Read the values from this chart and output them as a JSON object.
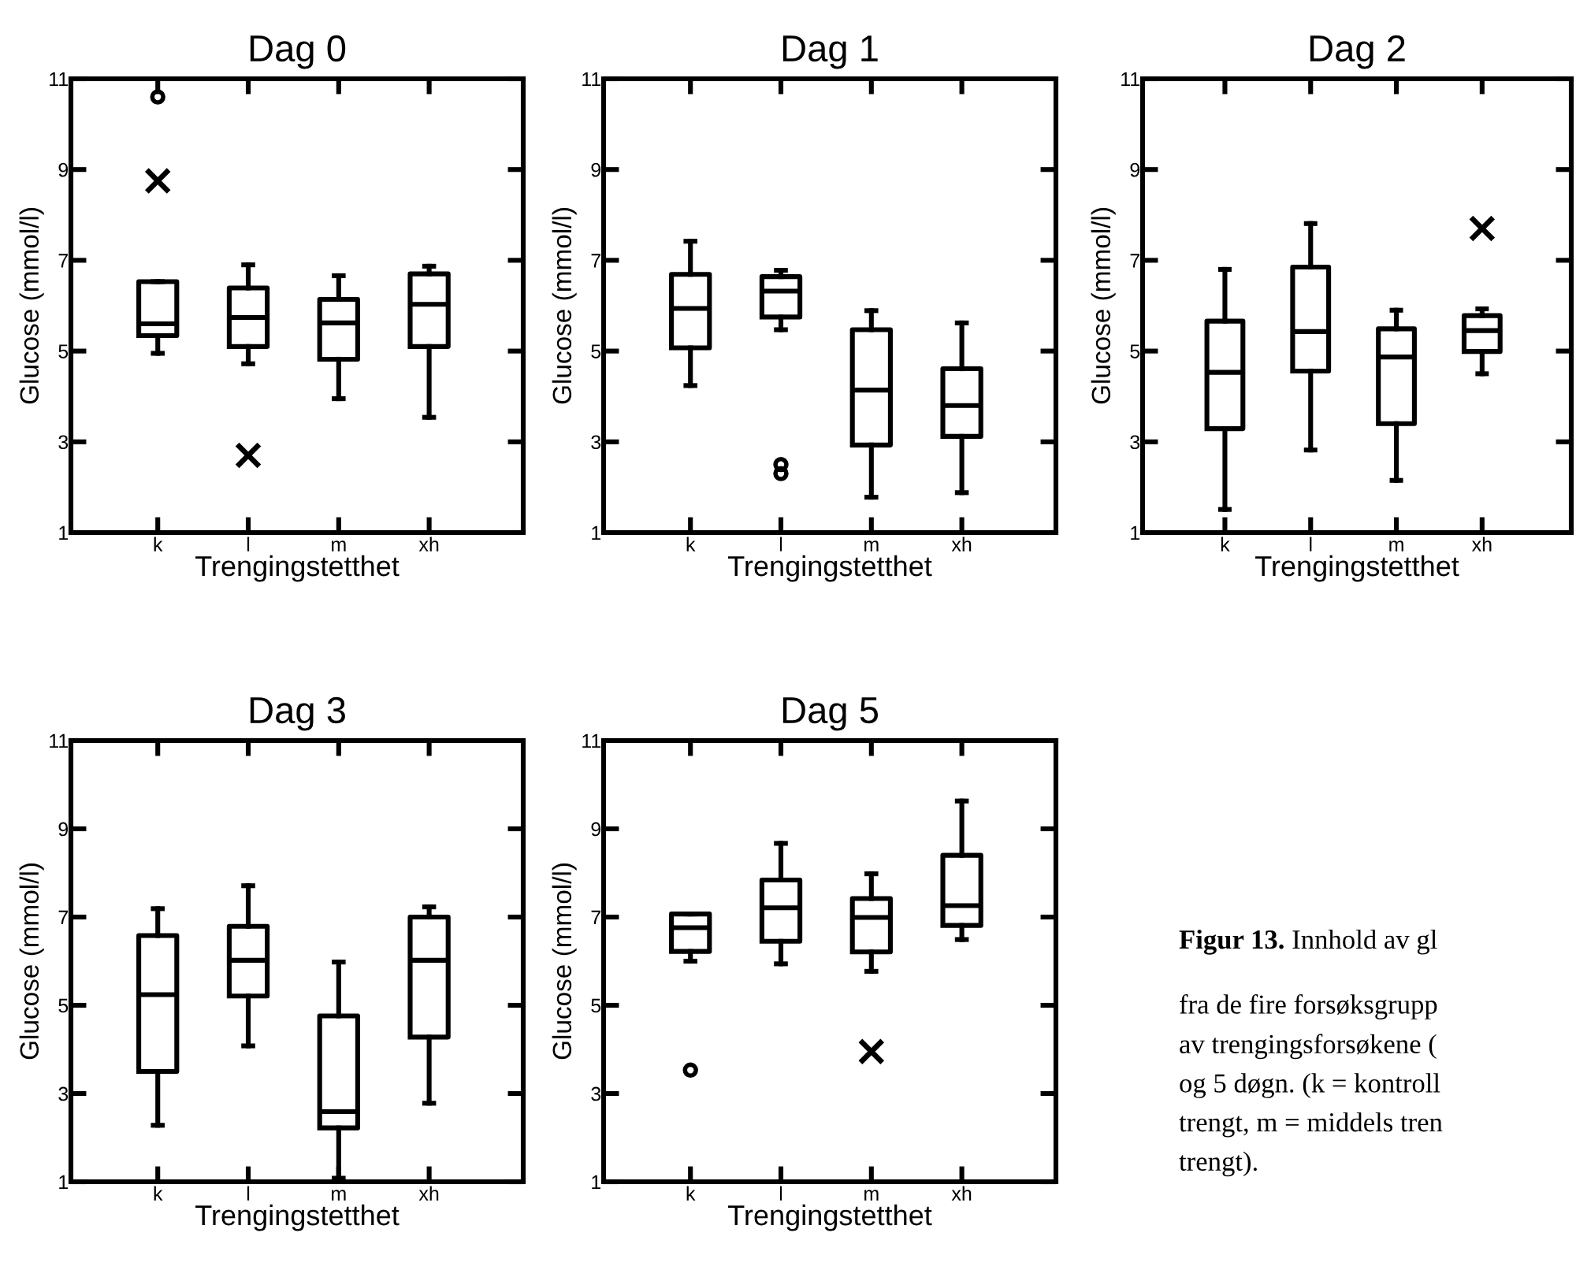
{
  "chart_data": [
    {
      "type": "box",
      "title": "Dag 0",
      "xlabel": "Trengingstetthet",
      "ylabel": "Glucose (mmol/l)",
      "categories": [
        "k",
        "l",
        "m",
        "xh"
      ],
      "ylim": [
        1,
        11
      ],
      "yticks": [
        1,
        3,
        5,
        7,
        9,
        11
      ],
      "boxes": [
        {
          "low": 4.95,
          "q1": 5.34,
          "median": 5.6,
          "q3": 6.53,
          "high": 6.53,
          "outliers": [
            10.6
          ]
        },
        {
          "low": 4.72,
          "q1": 5.1,
          "median": 5.74,
          "q3": 6.39,
          "high": 6.9
        },
        {
          "low": 3.95,
          "q1": 4.82,
          "median": 5.62,
          "q3": 6.14,
          "high": 6.66
        },
        {
          "low": 3.54,
          "q1": 5.1,
          "median": 6.03,
          "q3": 6.7,
          "high": 6.87
        }
      ],
      "series": [
        {
          "type": "scatter",
          "x": [
            "k",
            "l"
          ],
          "values": [
            8.75,
            2.7
          ],
          "marker": "cross",
          "color": "#000000"
        }
      ]
    },
    {
      "type": "box",
      "title": "Dag 1",
      "xlabel": "Trengingstetthet",
      "ylabel": "Glucose (mmol/l)",
      "categories": [
        "k",
        "l",
        "m",
        "xh"
      ],
      "ylim": [
        1,
        11
      ],
      "yticks": [
        1,
        3,
        5,
        7,
        9,
        11
      ],
      "boxes": [
        {
          "low": 4.24,
          "q1": 5.07,
          "median": 5.94,
          "q3": 6.69,
          "high": 7.42
        },
        {
          "low": 5.47,
          "q1": 5.75,
          "median": 6.32,
          "q3": 6.64,
          "high": 6.78,
          "outliers": [
            2.5,
            2.3
          ]
        },
        {
          "low": 1.78,
          "q1": 2.93,
          "median": 4.14,
          "q3": 5.47,
          "high": 5.89
        },
        {
          "low": 1.88,
          "q1": 3.12,
          "median": 3.8,
          "q3": 4.61,
          "high": 5.62
        }
      ]
    },
    {
      "type": "box",
      "title": "Dag 2",
      "xlabel": "Trengingstetthet",
      "ylabel": "Glucose (mmol/l)",
      "categories": [
        "k",
        "l",
        "m",
        "xh"
      ],
      "ylim": [
        1,
        11
      ],
      "yticks": [
        1,
        3,
        5,
        7,
        9,
        11
      ],
      "boxes": [
        {
          "low": 1.51,
          "q1": 3.29,
          "median": 4.53,
          "q3": 5.66,
          "high": 6.8
        },
        {
          "low": 2.82,
          "q1": 4.56,
          "median": 5.43,
          "q3": 6.85,
          "high": 7.81
        },
        {
          "low": 2.15,
          "q1": 3.4,
          "median": 4.87,
          "q3": 5.49,
          "high": 5.9
        },
        {
          "low": 4.5,
          "q1": 4.99,
          "median": 5.45,
          "q3": 5.78,
          "high": 5.93
        }
      ],
      "series": [
        {
          "type": "scatter",
          "x": [
            "xh"
          ],
          "values": [
            7.7
          ],
          "marker": "cross",
          "color": "#000000"
        }
      ]
    },
    {
      "type": "box",
      "title": "Dag 3",
      "xlabel": "Trengingstetthet",
      "ylabel": "Glucose (mmol/l)",
      "categories": [
        "k",
        "l",
        "m",
        "xh"
      ],
      "ylim": [
        1,
        11
      ],
      "yticks": [
        1,
        3,
        5,
        7,
        9,
        11
      ],
      "boxes": [
        {
          "low": 2.28,
          "q1": 3.5,
          "median": 5.24,
          "q3": 6.58,
          "high": 7.19
        },
        {
          "low": 4.08,
          "q1": 5.21,
          "median": 6.02,
          "q3": 6.79,
          "high": 7.71
        },
        {
          "low": 1.08,
          "q1": 2.22,
          "median": 2.59,
          "q3": 4.76,
          "high": 5.98
        },
        {
          "low": 2.78,
          "q1": 4.28,
          "median": 6.02,
          "q3": 7.0,
          "high": 7.23
        }
      ]
    },
    {
      "type": "box",
      "title": "Dag 5",
      "xlabel": "Trengingstetthet",
      "ylabel": "Glucose (mmol/l)",
      "categories": [
        "k",
        "l",
        "m",
        "xh"
      ],
      "ylim": [
        1,
        11
      ],
      "yticks": [
        1,
        3,
        5,
        7,
        9,
        11
      ],
      "boxes": [
        {
          "low": 6.0,
          "q1": 6.22,
          "median": 6.76,
          "q3": 7.07,
          "high": 7.07,
          "outliers": [
            3.53
          ]
        },
        {
          "low": 5.94,
          "q1": 6.45,
          "median": 7.21,
          "q3": 7.84,
          "high": 8.67
        },
        {
          "low": 5.77,
          "q1": 6.21,
          "median": 6.99,
          "q3": 7.42,
          "high": 7.98
        },
        {
          "low": 6.49,
          "q1": 6.81,
          "median": 7.26,
          "q3": 8.4,
          "high": 9.63
        }
      ],
      "series": [
        {
          "type": "scatter",
          "x": [
            "m"
          ],
          "values": [
            3.95
          ],
          "marker": "cross",
          "color": "#000000"
        }
      ]
    },
    {
      "type": "other",
      "annotations": [
        "Figur 13.",
        " Innhold av gl",
        "fra de fire forsøksgrupp\nav trengingsforsøkene (\nog 5 døgn. (k = kontroll\ntrengt, m = middels tren\ntrengt)."
      ]
    }
  ]
}
